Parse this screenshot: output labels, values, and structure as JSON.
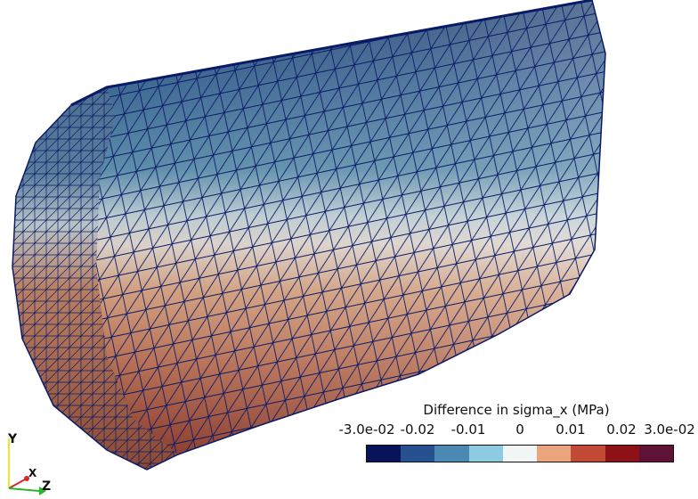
{
  "legend": {
    "title": "Difference in sigma_x (MPa)",
    "ticks": [
      "-3.0e-02",
      "-0.02",
      "-0.01",
      "0",
      "0.01",
      "0.02",
      "3.0e-02"
    ],
    "colors": [
      "#08145a",
      "#26508f",
      "#4b88b3",
      "#8ccbe0",
      "#f2f5f5",
      "#eba57c",
      "#c44a38",
      "#8c1218",
      "#5e1235"
    ]
  },
  "orientation_axes": {
    "y_label": "Y",
    "x_label": "X",
    "z_label": "Z",
    "y_color": "#e8e832",
    "x_color": "#d42a2a",
    "z_color": "#2bb52b"
  }
}
